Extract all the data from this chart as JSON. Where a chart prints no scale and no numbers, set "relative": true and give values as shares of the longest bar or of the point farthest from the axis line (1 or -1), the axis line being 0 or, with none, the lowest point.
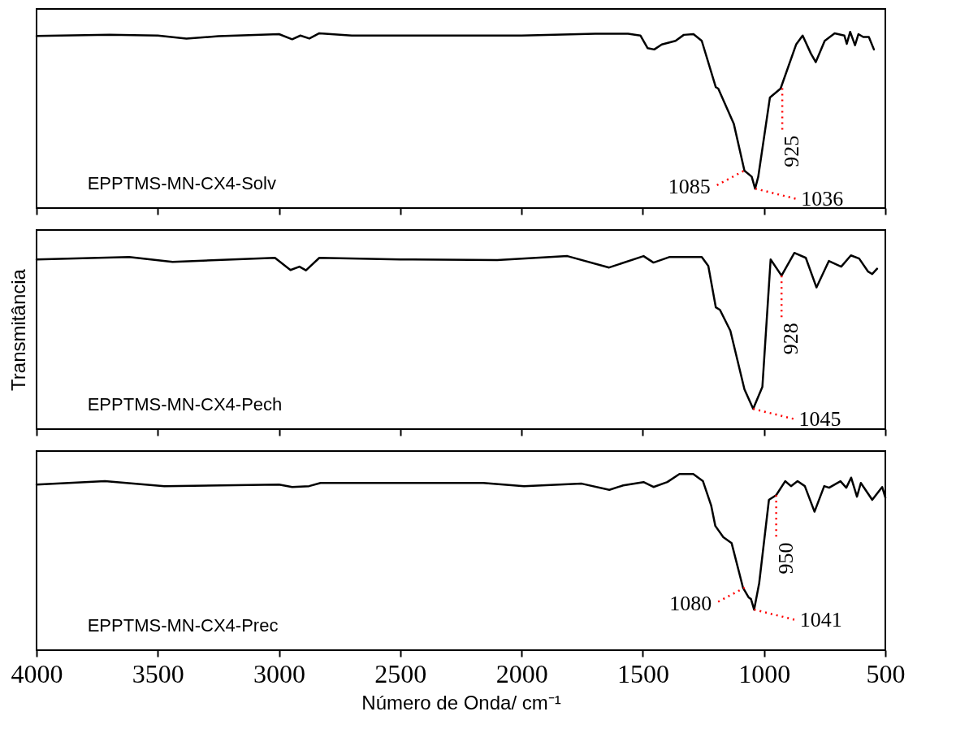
{
  "chart_data": [
    {
      "type": "line",
      "relative": true,
      "xlim": [
        4000,
        500
      ],
      "xticks": [
        4000,
        3500,
        3000,
        2500,
        2000,
        1500,
        1000,
        500
      ],
      "tick_labels": false,
      "series": [
        {
          "name": "EPPTMS-MN-CX4-Solv",
          "color": "#000000",
          "x": [
            4000,
            3700,
            3500,
            3382,
            3250,
            3000,
            2946,
            2912,
            2875,
            2834,
            2700,
            2000,
            1696,
            1561,
            1510,
            1480,
            1453,
            1422,
            1365,
            1331,
            1291,
            1257,
            1199,
            1189,
            1125,
            1081,
            1051,
            1037,
            1024,
            976,
            932,
            868,
            841,
            807,
            787,
            750,
            709,
            669,
            659,
            645,
            625,
            611,
            591,
            568,
            547
          ],
          "values": [
            0.977,
            0.983,
            0.979,
            0.962,
            0.975,
            0.987,
            0.958,
            0.979,
            0.962,
            0.992,
            0.979,
            0.979,
            0.989,
            0.989,
            0.979,
            0.907,
            0.9,
            0.928,
            0.949,
            0.983,
            0.987,
            0.949,
            0.686,
            0.678,
            0.479,
            0.212,
            0.178,
            0.11,
            0.178,
            0.627,
            0.678,
            0.928,
            0.979,
            0.877,
            0.828,
            0.949,
            0.992,
            0.979,
            0.932,
            1.0,
            0.924,
            0.987,
            0.971,
            0.971,
            0.9
          ]
        }
      ],
      "annotations": [
        {
          "text": "1085",
          "x": 1085,
          "y": 0.21
        },
        {
          "text": "1036",
          "x": 1036,
          "y": 0.11
        },
        {
          "text": "925",
          "x": 925,
          "y": 0.68
        }
      ]
    },
    {
      "type": "line",
      "relative": true,
      "xlim": [
        4000,
        500
      ],
      "xticks": [
        4000,
        3500,
        3000,
        2500,
        2000,
        1500,
        1000,
        500
      ],
      "tick_labels": false,
      "ylabel": "Transmitância",
      "series": [
        {
          "name": "EPPTMS-MN-CX4-Pech",
          "color": "#000000",
          "x": [
            4000,
            3618,
            3439,
            3017,
            2953,
            2916,
            2889,
            2834,
            2500,
            2100,
            1811,
            1639,
            1497,
            1456,
            1389,
            1257,
            1230,
            1199,
            1182,
            1139,
            1081,
            1045,
            1007,
            973,
            928,
            875,
            828,
            784,
            733,
            682,
            642,
            608,
            571,
            554,
            534
          ],
          "values": [
            0.963,
            0.977,
            0.949,
            0.972,
            0.903,
            0.922,
            0.901,
            0.972,
            0.963,
            0.959,
            0.982,
            0.917,
            0.982,
            0.945,
            0.977,
            0.977,
            0.926,
            0.691,
            0.677,
            0.558,
            0.226,
            0.115,
            0.24,
            0.963,
            0.871,
            1.0,
            0.972,
            0.804,
            0.954,
            0.922,
            0.986,
            0.968,
            0.894,
            0.88,
            0.91
          ]
        }
      ],
      "annotations": [
        {
          "text": "1045",
          "x": 1045,
          "y": 0.115
        },
        {
          "text": "928",
          "x": 928,
          "y": 0.871
        }
      ]
    },
    {
      "type": "line",
      "relative": true,
      "xlim": [
        4000,
        500
      ],
      "xticks": [
        4000,
        3500,
        3000,
        2500,
        2000,
        1500,
        1000,
        500
      ],
      "tick_labels": "x",
      "xlabel": "Número de Onda/ cm⁻¹",
      "series": [
        {
          "name": "EPPTMS-MN-CX4-Prec",
          "color": "#000000",
          "x": [
            4000,
            3718,
            3473,
            3000,
            2946,
            2876,
            2829,
            2158,
            1990,
            1752,
            1638,
            1581,
            1497,
            1456,
            1399,
            1349,
            1292,
            1252,
            1218,
            1201,
            1168,
            1134,
            1087,
            1064,
            1054,
            1041,
            1020,
            980,
            950,
            913,
            889,
            862,
            832,
            792,
            752,
            732,
            685,
            661,
            641,
            617,
            601,
            554,
            513,
            500
          ],
          "values": [
            0.94,
            0.959,
            0.931,
            0.94,
            0.926,
            0.931,
            0.949,
            0.949,
            0.931,
            0.945,
            0.91,
            0.935,
            0.954,
            0.926,
            0.954,
            1.0,
            1.0,
            0.959,
            0.82,
            0.705,
            0.641,
            0.608,
            0.355,
            0.3,
            0.29,
            0.23,
            0.382,
            0.853,
            0.88,
            0.959,
            0.931,
            0.959,
            0.931,
            0.786,
            0.931,
            0.922,
            0.959,
            0.922,
            0.979,
            0.871,
            0.949,
            0.853,
            0.926,
            0.866
          ]
        }
      ],
      "annotations": [
        {
          "text": "1080",
          "x": 1080,
          "y": 0.355
        },
        {
          "text": "1041",
          "x": 1041,
          "y": 0.23
        },
        {
          "text": "950",
          "x": 950,
          "y": 0.88
        }
      ]
    }
  ]
}
